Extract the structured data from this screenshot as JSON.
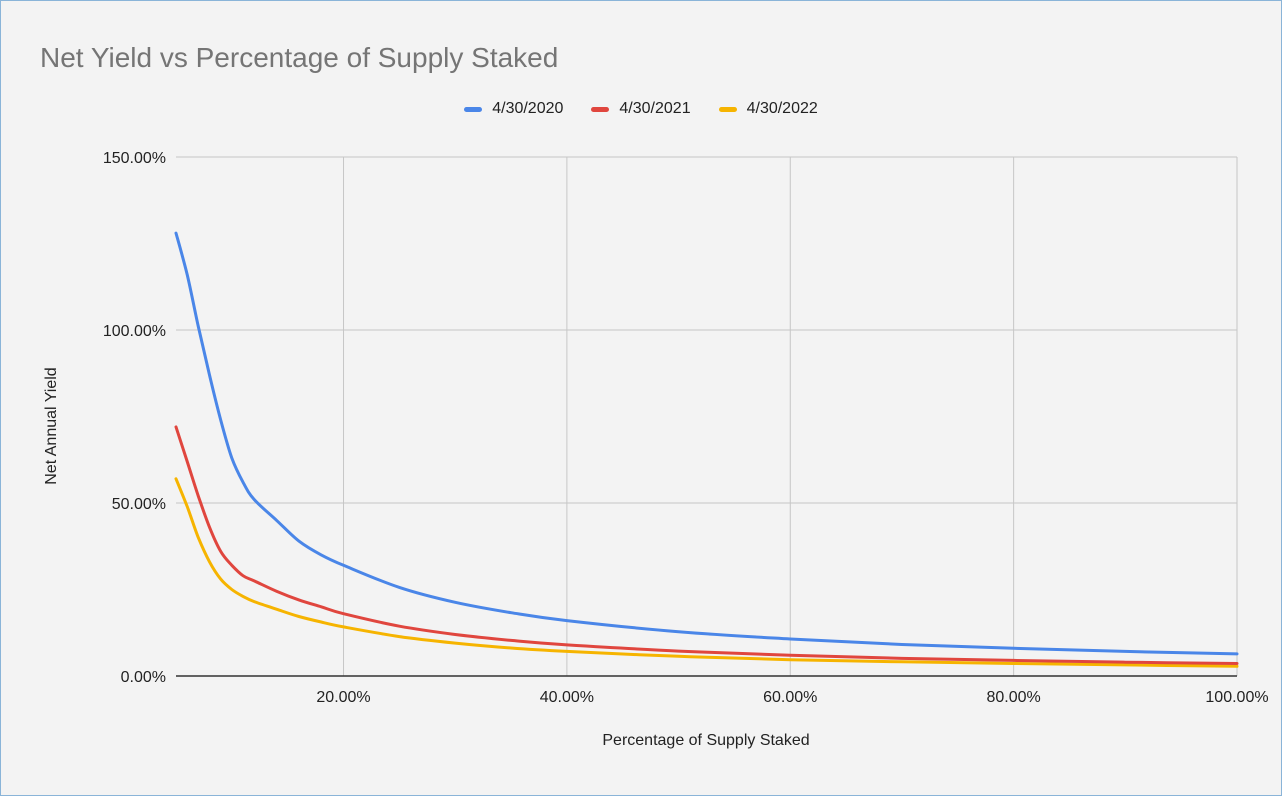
{
  "chart_data": {
    "type": "line",
    "title": "Net Yield vs Percentage of Supply Staked",
    "xlabel": "Percentage of Supply Staked",
    "ylabel": "Net Annual Yield",
    "xlim": [
      5,
      100
    ],
    "ylim": [
      0,
      150
    ],
    "x_ticks": [
      20,
      40,
      60,
      80,
      100
    ],
    "x_tick_labels": [
      "20.00%",
      "40.00%",
      "60.00%",
      "80.00%",
      "100.00%"
    ],
    "y_ticks": [
      0,
      50,
      100,
      150
    ],
    "y_tick_labels": [
      "0.00%",
      "50.00%",
      "100.00%",
      "150.00%"
    ],
    "grid": true,
    "legend_position": "top",
    "x": [
      5,
      6,
      7,
      8,
      9,
      10,
      11,
      12,
      14,
      16,
      18,
      20,
      25,
      30,
      35,
      40,
      50,
      60,
      70,
      80,
      90,
      100
    ],
    "series": [
      {
        "name": "4/30/2020",
        "color": "#4a86e8",
        "values": [
          128,
          116,
          101,
          87,
          74,
          63,
          56,
          51,
          45,
          39,
          35,
          32,
          25.6,
          21.3,
          18.3,
          16.0,
          12.8,
          10.7,
          9.1,
          8.0,
          7.1,
          6.4
        ]
      },
      {
        "name": "4/30/2021",
        "color": "#e0463e",
        "values": [
          72,
          62,
          52,
          43,
          36,
          32,
          29,
          27.5,
          24.5,
          22,
          20,
          18,
          14.4,
          12.0,
          10.3,
          9.0,
          7.2,
          6.0,
          5.1,
          4.5,
          4.0,
          3.6
        ]
      },
      {
        "name": "4/30/2022",
        "color": "#f6b400",
        "values": [
          57,
          49,
          40,
          33,
          28,
          25,
          23,
          21.5,
          19.3,
          17.2,
          15.6,
          14.2,
          11.4,
          9.5,
          8.1,
          7.1,
          5.7,
          4.7,
          4.1,
          3.6,
          3.2,
          2.8
        ]
      }
    ]
  }
}
